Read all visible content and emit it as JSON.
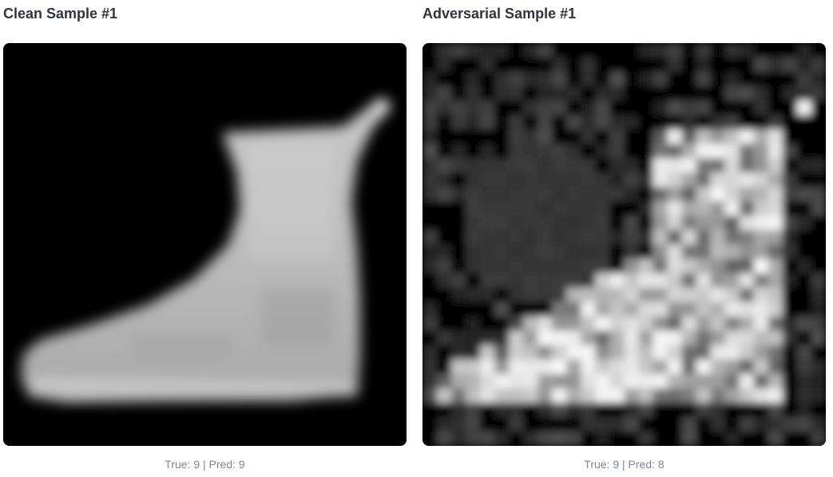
{
  "samples": [
    {
      "title": "Clean Sample #1",
      "caption": "True: 9 | Pred: 9",
      "image_description": "grayscale ankle boot"
    },
    {
      "title": "Adversarial Sample #1",
      "caption": "True: 9 | Pred: 8",
      "image_description": "grayscale ankle boot with adversarial noise"
    }
  ]
}
